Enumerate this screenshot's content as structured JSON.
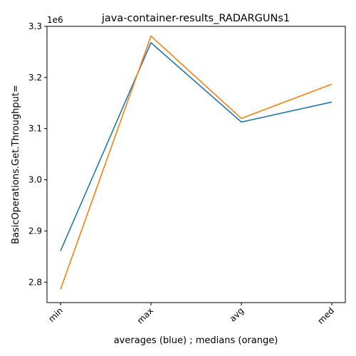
{
  "chart_data": {
    "type": "line",
    "title": "java-container-results_RADARGUNs1",
    "xlabel": "averages (blue) ; medians (orange)",
    "ylabel": "BasicOperations.Get.Throughput=",
    "y_offset_label": "1e6",
    "categories": [
      "min",
      "max",
      "avg",
      "med"
    ],
    "ylim": [
      2760000,
      3300000
    ],
    "y_ticks": [
      2800000,
      2900000,
      3000000,
      3100000,
      3200000,
      3300000
    ],
    "y_tick_labels": [
      "2.8",
      "2.9",
      "3.0",
      "3.1",
      "3.2",
      "3.3"
    ],
    "grid": false,
    "series": [
      {
        "values": [
          2861000,
          3268000,
          3113000,
          3152000
        ],
        "color": "#1f77b4"
      },
      {
        "values": [
          2786000,
          3281000,
          3120000,
          3187000
        ],
        "color": "#ff7f0e"
      }
    ]
  }
}
